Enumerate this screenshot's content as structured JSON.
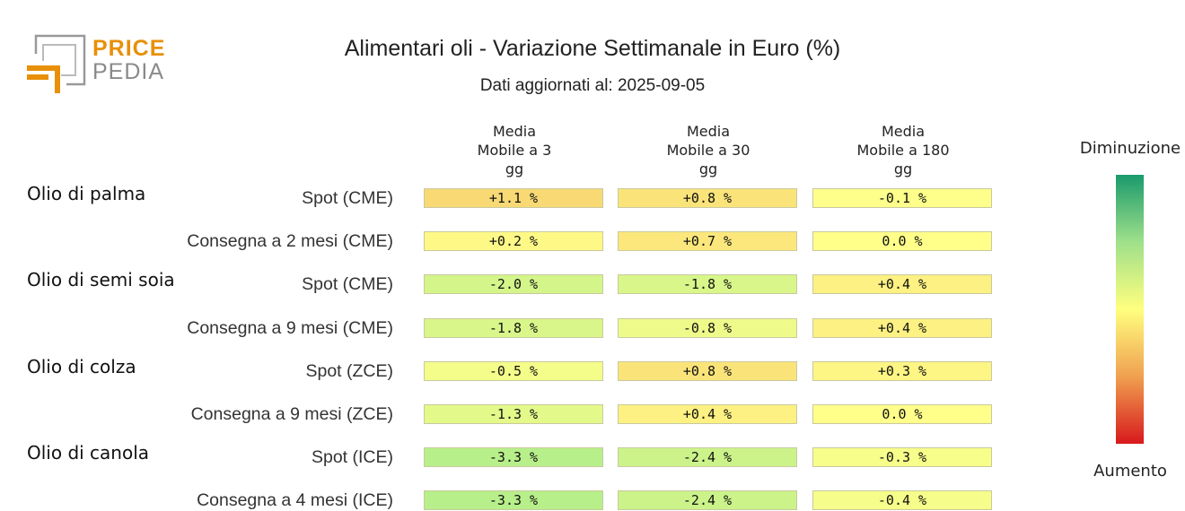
{
  "logo": {
    "line1": "PRICE",
    "line2": "PEDIA"
  },
  "title": "Alimentari oli - Variazione Settimanale in Euro (%)",
  "subtitle": "Dati aggiornati al: 2025-09-05",
  "colorbar": {
    "top_label": "Diminuzione",
    "bottom_label": "Aumento",
    "colors": [
      "#1a9a6c",
      "#9fe08a",
      "#ffff7f",
      "#f0a050",
      "#d7191c"
    ]
  },
  "chart_data": {
    "type": "heatmap",
    "title": "Alimentari oli - Variazione Settimanale in Euro (%)",
    "columns": [
      {
        "line1": "Media",
        "line2": "Mobile a 3",
        "line3": "gg"
      },
      {
        "line1": "Media",
        "line2": "Mobile a 30",
        "line3": "gg"
      },
      {
        "line1": "Media",
        "line2": "Mobile a 180",
        "line3": "gg"
      }
    ],
    "groups": [
      {
        "name": "Olio di palma",
        "rows": [
          {
            "label": "Spot (CME)",
            "values": [
              1.1,
              0.8,
              -0.1
            ],
            "text": [
              "+1.1 %",
              "+0.8 %",
              "-0.1 %"
            ]
          },
          {
            "label": "Consegna a 2 mesi (CME)",
            "values": [
              0.2,
              0.7,
              0.0
            ],
            "text": [
              "+0.2 %",
              "+0.7 %",
              "0.0 %"
            ]
          }
        ]
      },
      {
        "name": "Olio di semi soia",
        "rows": [
          {
            "label": "Spot (CME)",
            "values": [
              -2.0,
              -1.8,
              0.4
            ],
            "text": [
              "-2.0 %",
              "-1.8 %",
              "+0.4 %"
            ]
          },
          {
            "label": "Consegna a 9 mesi (CME)",
            "values": [
              -1.8,
              -0.8,
              0.4
            ],
            "text": [
              "-1.8 %",
              "-0.8 %",
              "+0.4 %"
            ]
          }
        ]
      },
      {
        "name": "Olio di colza",
        "rows": [
          {
            "label": "Spot (ZCE)",
            "values": [
              -0.5,
              0.8,
              0.3
            ],
            "text": [
              "-0.5 %",
              "+0.8 %",
              "+0.3 %"
            ]
          },
          {
            "label": "Consegna a 9 mesi (ZCE)",
            "values": [
              -1.3,
              0.4,
              0.0
            ],
            "text": [
              "-1.3 %",
              "+0.4 %",
              "0.0 %"
            ]
          }
        ]
      },
      {
        "name": "Olio di canola",
        "rows": [
          {
            "label": "Spot (ICE)",
            "values": [
              -3.3,
              -2.4,
              -0.3
            ],
            "text": [
              "-3.3 %",
              "-2.4 %",
              "-0.3 %"
            ]
          },
          {
            "label": "Consegna a 4 mesi (ICE)",
            "values": [
              -3.3,
              -2.4,
              -0.4
            ],
            "text": [
              "-3.3 %",
              "-2.4 %",
              "-0.4 %"
            ]
          }
        ]
      }
    ]
  }
}
